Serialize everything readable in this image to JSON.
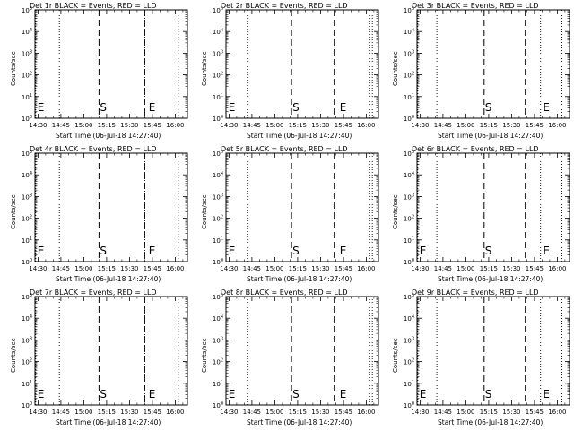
{
  "chart_data": {
    "type": "line",
    "shared": {
      "xlabel": "Start Time (06-Jul-18 14:27:40)",
      "ylabel": "Counts/sec",
      "x_ticks": [
        "14:30",
        "14:45",
        "15:00",
        "15:15",
        "15:30",
        "15:45",
        "16:00"
      ],
      "x_tick_minutes": [
        0,
        15,
        30,
        45,
        60,
        75,
        90
      ],
      "xlim_minutes": [
        -2,
        98
      ],
      "y_ticks": [
        "10^0",
        "10^1",
        "10^2",
        "10^3",
        "10^4",
        "10^5"
      ],
      "ylim": [
        1,
        100000
      ],
      "yscale": "log",
      "line_colors": {
        "events": "#000000",
        "lld": "#ff0000"
      }
    },
    "panels": [
      {
        "title": "Det 1r BLACK = Events, RED = LLD",
        "dotted": [
          -1.5,
          14,
          70,
          92
        ],
        "dashed": [
          40,
          70
        ],
        "markers": [
          {
            "label": "E",
            "x": -1
          },
          {
            "label": "S",
            "x": 40
          },
          {
            "label": "E",
            "x": 72
          }
        ]
      },
      {
        "title": "Det 2r BLACK = Events, RED = LLD",
        "dotted": [
          12,
          92,
          94
        ],
        "dashed": [
          41,
          69
        ],
        "markers": [
          {
            "label": "E",
            "x": -1
          },
          {
            "label": "S",
            "x": 41
          },
          {
            "label": "E",
            "x": 72
          }
        ]
      },
      {
        "title": "Det 3r BLACK = Events, RED = LLD",
        "dotted": [
          -1.5,
          11,
          79,
          93
        ],
        "dashed": [
          42,
          69
        ],
        "markers": [
          {
            "label": "S",
            "x": 42
          },
          {
            "label": "E",
            "x": 80
          }
        ]
      },
      {
        "title": "Det 4r BLACK = Events, RED = LLD",
        "dotted": [
          -1.5,
          14,
          70,
          92
        ],
        "dashed": [
          40,
          70
        ],
        "markers": [
          {
            "label": "E",
            "x": -1
          },
          {
            "label": "S",
            "x": 40
          },
          {
            "label": "E",
            "x": 72
          }
        ]
      },
      {
        "title": "Det 5r BLACK = Events, RED = LLD",
        "dotted": [
          12,
          92,
          94
        ],
        "dashed": [
          41,
          69
        ],
        "markers": [
          {
            "label": "E",
            "x": -1
          },
          {
            "label": "S",
            "x": 41
          },
          {
            "label": "E",
            "x": 72
          }
        ]
      },
      {
        "title": "Det 6r BLACK = Events, RED = LLD",
        "dotted": [
          -1.5,
          11,
          79,
          93
        ],
        "dashed": [
          42,
          69
        ],
        "markers": [
          {
            "label": "E",
            "x": -1
          },
          {
            "label": "S",
            "x": 42
          },
          {
            "label": "E",
            "x": 80
          }
        ]
      },
      {
        "title": "Det 7r BLACK = Events, RED = LLD",
        "dotted": [
          -1.5,
          14,
          70,
          92
        ],
        "dashed": [
          40,
          70
        ],
        "markers": [
          {
            "label": "E",
            "x": -1
          },
          {
            "label": "S",
            "x": 40
          },
          {
            "label": "E",
            "x": 72
          }
        ]
      },
      {
        "title": "Det 8r BLACK = Events, RED = LLD",
        "dotted": [
          12,
          92,
          94
        ],
        "dashed": [
          41,
          69
        ],
        "markers": [
          {
            "label": "E",
            "x": -1
          },
          {
            "label": "S",
            "x": 41
          },
          {
            "label": "E",
            "x": 72
          }
        ]
      },
      {
        "title": "Det 9r BLACK = Events, RED = LLD",
        "dotted": [
          -1.5,
          11,
          79,
          93
        ],
        "dashed": [
          42,
          69
        ],
        "markers": [
          {
            "label": "E",
            "x": -1
          },
          {
            "label": "S",
            "x": 42
          },
          {
            "label": "E",
            "x": 80
          }
        ]
      }
    ]
  }
}
